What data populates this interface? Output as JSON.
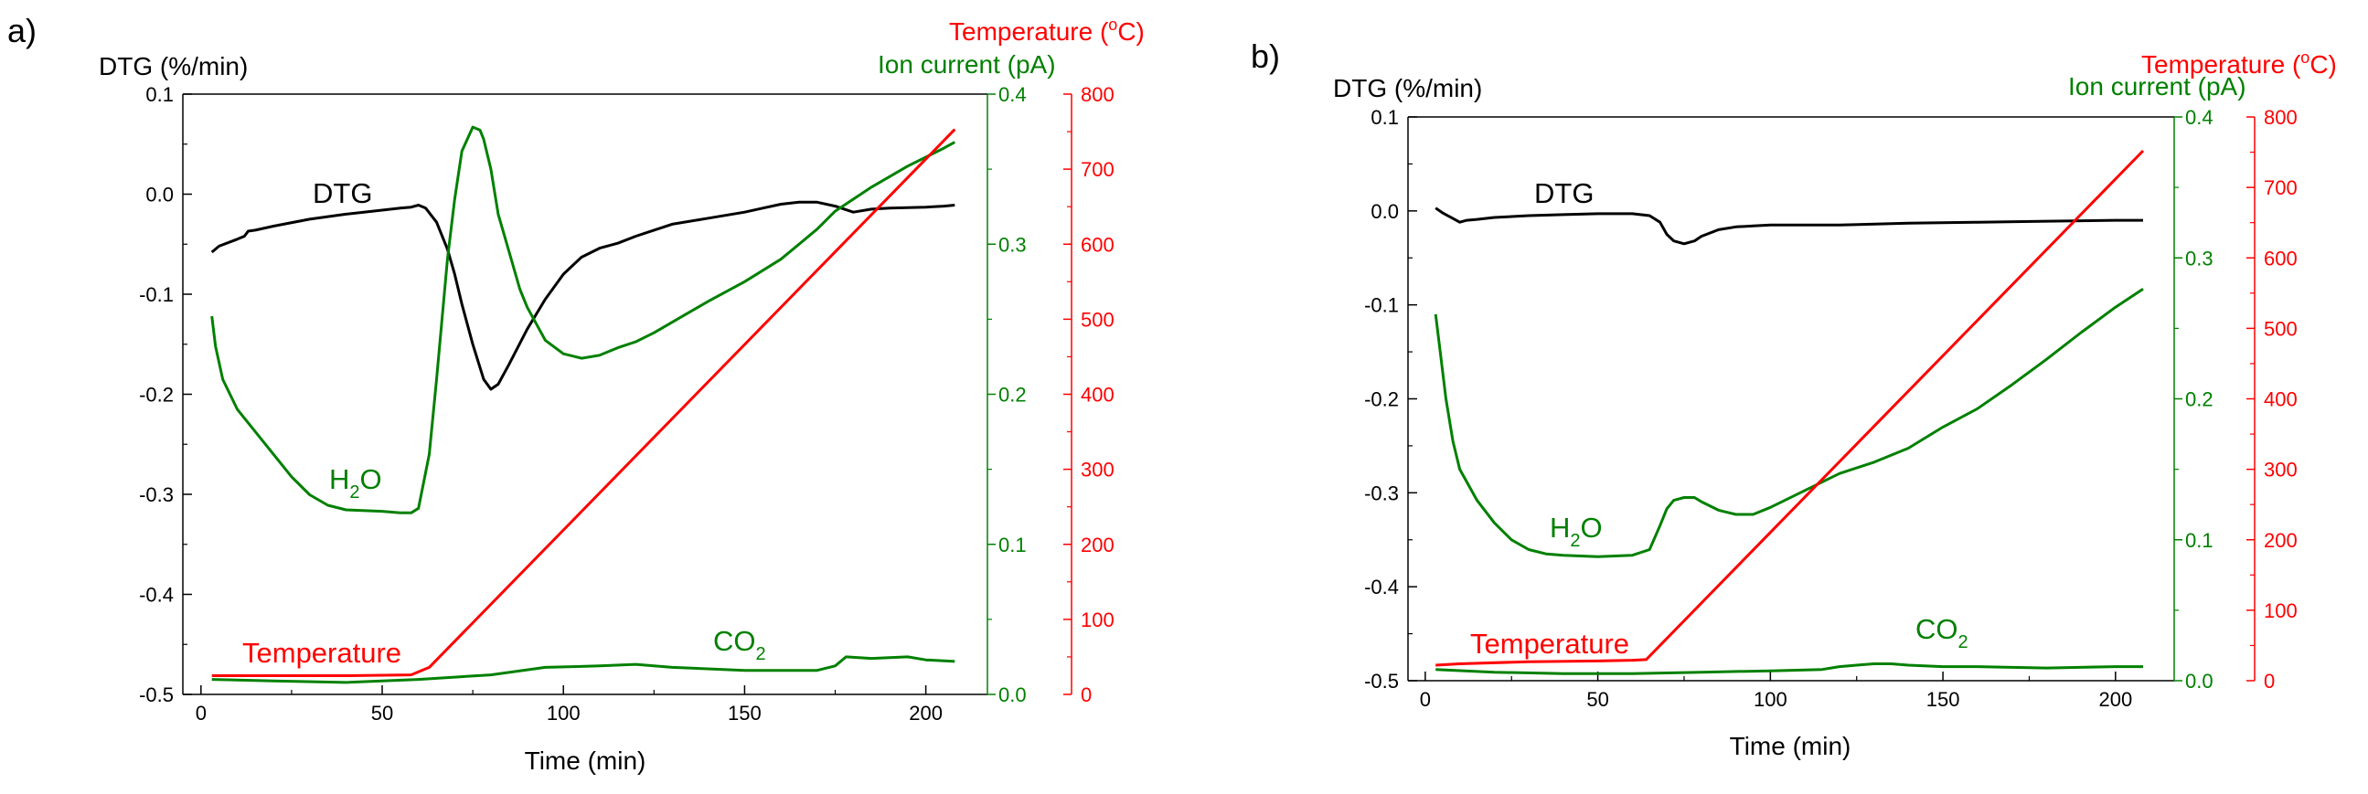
{
  "colors": {
    "dtg": "#000000",
    "ion": "#008000",
    "temperature": "#ff0000"
  },
  "chart_data": [
    {
      "type": "line",
      "panel": "a)",
      "xlabel": "Time (min)",
      "x_ticks": [
        "0",
        "50",
        "100",
        "150",
        "200"
      ],
      "xlim": [
        -5,
        217
      ],
      "left_axis": {
        "label": "DTG (%/min)",
        "range": [
          -0.5,
          0.1
        ],
        "ticks": [
          "-0.5",
          "-0.4",
          "-0.3",
          "-0.2",
          "-0.1",
          "0.0",
          "0.1"
        ]
      },
      "ion_axis": {
        "label": "Ion current (pA)",
        "range": [
          0,
          0.4
        ],
        "ticks": [
          "0.0",
          "0.1",
          "0.2",
          "0.3",
          "0.4"
        ]
      },
      "temp_axis": {
        "label_prefix": "Temperature (",
        "label_sup": "o",
        "label_suffix": "C)",
        "range": [
          0,
          800
        ],
        "ticks": [
          "0",
          "100",
          "200",
          "300",
          "400",
          "500",
          "600",
          "700",
          "800"
        ]
      },
      "series": [
        {
          "name": "DTG",
          "axis": "left",
          "color": "#000000",
          "x": [
            3,
            5,
            10,
            12,
            13,
            15,
            20,
            30,
            40,
            50,
            55,
            58,
            60,
            62,
            65,
            68,
            70,
            72,
            75,
            78,
            80,
            82,
            85,
            90,
            95,
            100,
            105,
            110,
            115,
            120,
            130,
            140,
            150,
            155,
            160,
            165,
            170,
            175,
            180,
            185,
            190,
            200,
            205,
            208
          ],
          "y": [
            -0.058,
            -0.052,
            -0.045,
            -0.042,
            -0.037,
            -0.036,
            -0.032,
            -0.025,
            -0.02,
            -0.016,
            -0.014,
            -0.013,
            -0.011,
            -0.014,
            -0.028,
            -0.055,
            -0.08,
            -0.11,
            -0.15,
            -0.185,
            -0.195,
            -0.19,
            -0.17,
            -0.135,
            -0.105,
            -0.08,
            -0.063,
            -0.054,
            -0.049,
            -0.042,
            -0.03,
            -0.024,
            -0.018,
            -0.014,
            -0.01,
            -0.008,
            -0.008,
            -0.012,
            -0.018,
            -0.015,
            -0.014,
            -0.013,
            -0.012,
            -0.011
          ]
        },
        {
          "name": "H2O",
          "axis": "ion",
          "color": "#008000",
          "x": [
            3,
            4,
            6,
            10,
            15,
            20,
            25,
            30,
            35,
            40,
            50,
            55,
            58,
            60,
            63,
            65,
            68,
            70,
            72,
            75,
            77,
            78,
            80,
            82,
            85,
            88,
            90,
            95,
            100,
            105,
            110,
            115,
            120,
            125,
            130,
            140,
            150,
            160,
            165,
            170,
            175,
            180,
            185,
            190,
            195,
            200,
            205,
            208
          ],
          "y": [
            0.252,
            0.232,
            0.21,
            0.19,
            0.175,
            0.16,
            0.145,
            0.133,
            0.126,
            0.123,
            0.122,
            0.121,
            0.121,
            0.124,
            0.16,
            0.21,
            0.29,
            0.33,
            0.362,
            0.378,
            0.376,
            0.37,
            0.35,
            0.32,
            0.295,
            0.27,
            0.258,
            0.236,
            0.227,
            0.224,
            0.226,
            0.231,
            0.235,
            0.241,
            0.248,
            0.262,
            0.275,
            0.29,
            0.3,
            0.31,
            0.322,
            0.33,
            0.338,
            0.345,
            0.352,
            0.358,
            0.364,
            0.368
          ]
        },
        {
          "name": "CO2",
          "axis": "ion",
          "color": "#008000",
          "x": [
            3,
            20,
            40,
            60,
            80,
            95,
            110,
            120,
            130,
            150,
            160,
            170,
            175,
            178,
            185,
            195,
            200,
            208
          ],
          "y": [
            0.01,
            0.009,
            0.008,
            0.01,
            0.013,
            0.018,
            0.019,
            0.02,
            0.018,
            0.016,
            0.016,
            0.016,
            0.019,
            0.025,
            0.024,
            0.025,
            0.023,
            0.022
          ]
        },
        {
          "name": "Temperature",
          "axis": "temp",
          "color": "#ff0000",
          "x": [
            3,
            20,
            40,
            58,
            63,
            208
          ],
          "y": [
            25,
            25,
            25,
            26,
            36,
            753
          ]
        }
      ],
      "annotations": [
        {
          "text": "DTG",
          "color": "#000000"
        },
        {
          "text": "H",
          "sub": "2",
          "tail": "O",
          "color": "#008000"
        },
        {
          "text": "CO",
          "sub": "2",
          "color": "#008000"
        },
        {
          "text": "Temperature",
          "color": "#ff0000"
        }
      ]
    },
    {
      "type": "line",
      "panel": "b)",
      "xlabel": "Time (min)",
      "x_ticks": [
        "0",
        "50",
        "100",
        "150",
        "200"
      ],
      "xlim": [
        -5,
        217
      ],
      "left_axis": {
        "label": "DTG (%/min)",
        "range": [
          -0.5,
          0.1
        ],
        "ticks": [
          "-0.5",
          "-0.4",
          "-0.3",
          "-0.2",
          "-0.1",
          "0.0",
          "0.1"
        ]
      },
      "ion_axis": {
        "label": "Ion current (pA)",
        "range": [
          0,
          0.4
        ],
        "ticks": [
          "0.0",
          "0.1",
          "0.2",
          "0.3",
          "0.4"
        ]
      },
      "temp_axis": {
        "label_prefix": "Temperature (",
        "label_sup": "o",
        "label_suffix": "C)",
        "range": [
          0,
          800
        ],
        "ticks": [
          "0",
          "100",
          "200",
          "300",
          "400",
          "500",
          "600",
          "700",
          "800"
        ]
      },
      "series": [
        {
          "name": "DTG",
          "axis": "left",
          "color": "#000000",
          "x": [
            3,
            5,
            8,
            10,
            12,
            15,
            20,
            30,
            40,
            50,
            60,
            65,
            68,
            70,
            72,
            75,
            78,
            80,
            85,
            90,
            95,
            100,
            120,
            140,
            160,
            180,
            200,
            208
          ],
          "y": [
            0.003,
            -0.002,
            -0.008,
            -0.012,
            -0.01,
            -0.009,
            -0.007,
            -0.005,
            -0.004,
            -0.003,
            -0.003,
            -0.005,
            -0.012,
            -0.025,
            -0.032,
            -0.035,
            -0.032,
            -0.027,
            -0.02,
            -0.017,
            -0.016,
            -0.015,
            -0.015,
            -0.013,
            -0.012,
            -0.011,
            -0.01,
            -0.01
          ]
        },
        {
          "name": "H2O",
          "axis": "ion",
          "color": "#008000",
          "x": [
            3,
            4,
            6,
            8,
            10,
            15,
            20,
            25,
            30,
            35,
            40,
            50,
            60,
            65,
            68,
            70,
            72,
            75,
            78,
            80,
            85,
            90,
            95,
            100,
            110,
            120,
            130,
            140,
            150,
            160,
            170,
            180,
            190,
            200,
            208
          ],
          "y": [
            0.26,
            0.24,
            0.2,
            0.17,
            0.15,
            0.128,
            0.112,
            0.1,
            0.093,
            0.09,
            0.089,
            0.088,
            0.089,
            0.093,
            0.11,
            0.122,
            0.128,
            0.13,
            0.13,
            0.127,
            0.121,
            0.118,
            0.118,
            0.123,
            0.135,
            0.147,
            0.155,
            0.165,
            0.18,
            0.193,
            0.21,
            0.228,
            0.247,
            0.265,
            0.278
          ]
        },
        {
          "name": "CO2",
          "axis": "ion",
          "color": "#008000",
          "x": [
            3,
            20,
            40,
            60,
            80,
            100,
            115,
            120,
            125,
            130,
            135,
            140,
            150,
            160,
            180,
            200,
            208
          ],
          "y": [
            0.008,
            0.006,
            0.005,
            0.005,
            0.006,
            0.007,
            0.008,
            0.01,
            0.011,
            0.012,
            0.012,
            0.011,
            0.01,
            0.01,
            0.009,
            0.01,
            0.01
          ]
        },
        {
          "name": "Temperature",
          "axis": "temp",
          "color": "#ff0000",
          "x": [
            3,
            10,
            30,
            50,
            60,
            64,
            208
          ],
          "y": [
            22,
            24,
            27,
            28,
            29,
            30,
            752
          ]
        }
      ],
      "annotations": [
        {
          "text": "DTG",
          "color": "#000000"
        },
        {
          "text": "H",
          "sub": "2",
          "tail": "O",
          "color": "#008000"
        },
        {
          "text": "CO",
          "sub": "2",
          "color": "#008000"
        },
        {
          "text": "Temperature",
          "color": "#ff0000"
        }
      ]
    }
  ]
}
